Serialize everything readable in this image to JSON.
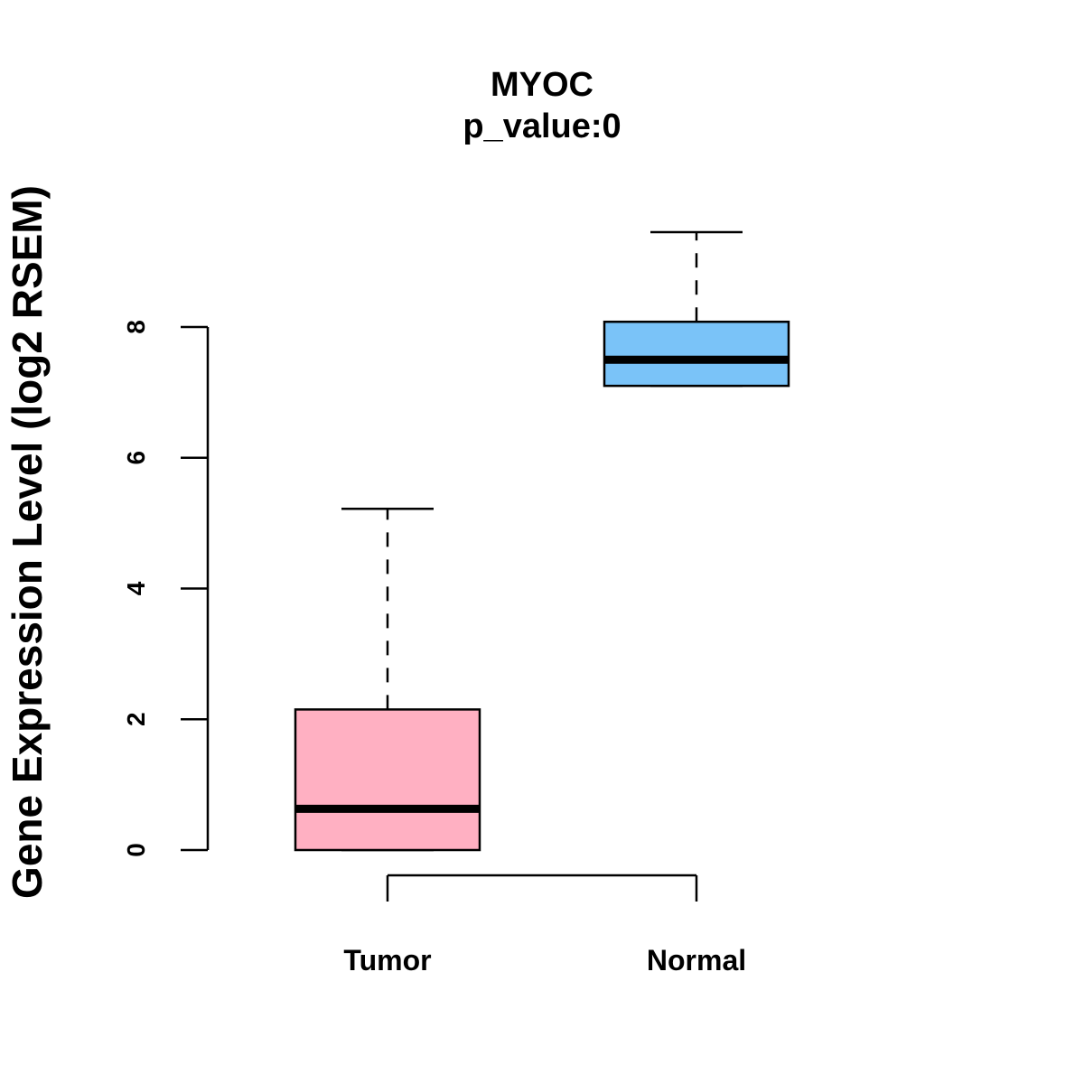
{
  "chart_data": {
    "type": "boxplot",
    "title": "MYOC",
    "subtitle": "p_value:0",
    "xlabel": "",
    "ylabel": "Gene Expression Level (log2 RSEM)",
    "ylim": [
      0,
      8
    ],
    "yticks": [
      0,
      2,
      4,
      6,
      8
    ],
    "categories": [
      "Tumor",
      "Normal"
    ],
    "series": [
      {
        "name": "Tumor",
        "color": "#FFB0C2",
        "min": 0,
        "q1": 0,
        "median": 0.63,
        "q3": 2.15,
        "max": 5.22
      },
      {
        "name": "Normal",
        "color": "#7AC3F8",
        "min": 7.1,
        "q1": 7.1,
        "median": 7.5,
        "q3": 8.08,
        "max": 9.45
      }
    ],
    "grid": false,
    "legend": "none"
  }
}
